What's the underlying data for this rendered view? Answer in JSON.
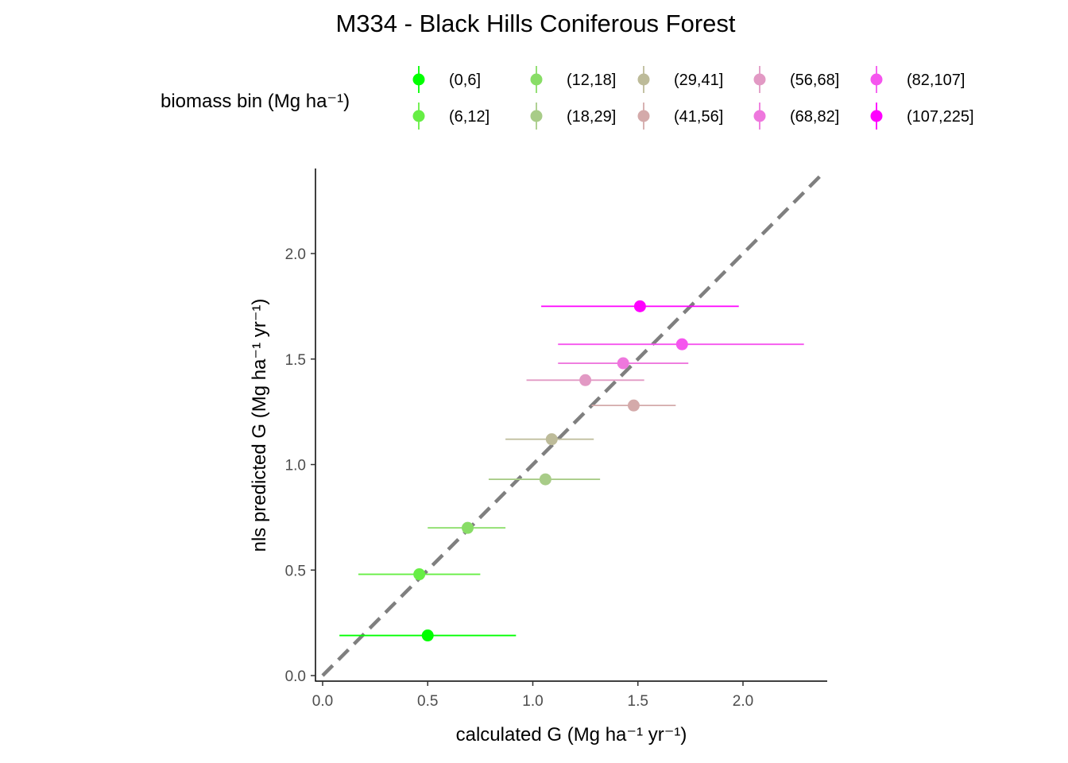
{
  "chart_data": {
    "type": "scatter",
    "title": "M334 - Black Hills Coniferous Forest",
    "xlabel": "calculated G (Mg ha⁻¹ yr⁻¹)",
    "ylabel": "nls predicted G (Mg ha⁻¹ yr⁻¹)",
    "xlim": [
      -0.04,
      2.4
    ],
    "ylim": [
      -0.04,
      2.4
    ],
    "x_ticks": [
      0.0,
      0.5,
      1.0,
      1.5,
      2.0
    ],
    "y_ticks": [
      0.0,
      0.5,
      1.0,
      1.5,
      2.0
    ],
    "x_tick_labels": [
      "0.0",
      "0.5",
      "1.0",
      "1.5",
      "2.0"
    ],
    "y_tick_labels": [
      "0.0",
      "0.5",
      "1.0",
      "1.5",
      "2.0"
    ],
    "grid": false,
    "reference_line": {
      "slope": 1,
      "intercept": 0,
      "style": "dashed",
      "color": "#7f7f7f"
    },
    "legend": {
      "title": "biomass bin (Mg ha⁻¹)",
      "placement": "top"
    },
    "series": [
      {
        "name": "(0,6]",
        "color": "#00ff00",
        "x": 0.5,
        "y": 0.19,
        "xmin": 0.08,
        "xmax": 0.92
      },
      {
        "name": "(6,12]",
        "color": "#66ee44",
        "x": 0.46,
        "y": 0.48,
        "xmin": 0.17,
        "xmax": 0.75
      },
      {
        "name": "(12,18]",
        "color": "#88dd66",
        "x": 0.69,
        "y": 0.7,
        "xmin": 0.5,
        "xmax": 0.87
      },
      {
        "name": "(18,29]",
        "color": "#a8cc88",
        "x": 1.06,
        "y": 0.93,
        "xmin": 0.79,
        "xmax": 1.32
      },
      {
        "name": "(29,41]",
        "color": "#bdbb99",
        "x": 1.09,
        "y": 1.12,
        "xmin": 0.87,
        "xmax": 1.29
      },
      {
        "name": "(41,56]",
        "color": "#d4aaaa",
        "x": 1.48,
        "y": 1.28,
        "xmin": 1.28,
        "xmax": 1.68
      },
      {
        "name": "(56,68]",
        "color": "#e299c4",
        "x": 1.25,
        "y": 1.4,
        "xmin": 0.97,
        "xmax": 1.53
      },
      {
        "name": "(68,82]",
        "color": "#ee77dd",
        "x": 1.43,
        "y": 1.48,
        "xmin": 1.12,
        "xmax": 1.74
      },
      {
        "name": "(82,107]",
        "color": "#f555ee",
        "x": 1.71,
        "y": 1.57,
        "xmin": 1.12,
        "xmax": 2.29
      },
      {
        "name": "(107,225]",
        "color": "#ff00ff",
        "x": 1.51,
        "y": 1.75,
        "xmin": 1.04,
        "xmax": 1.98
      }
    ]
  }
}
